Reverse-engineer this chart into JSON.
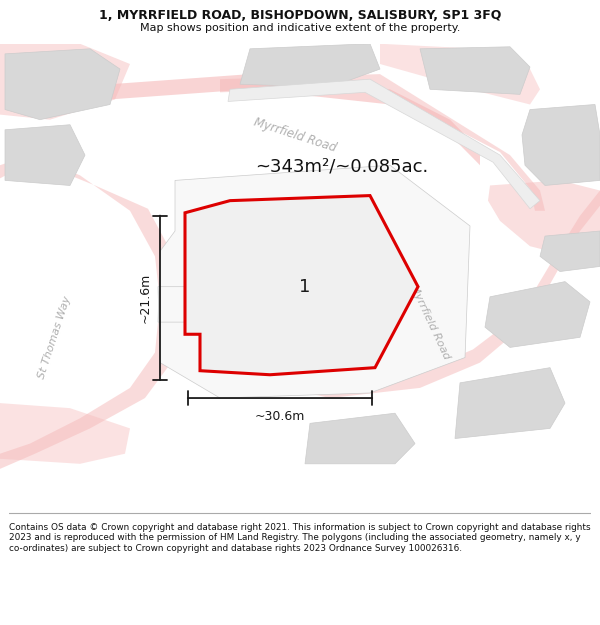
{
  "title_line1": "1, MYRRFIELD ROAD, BISHOPDOWN, SALISBURY, SP1 3FQ",
  "title_line2": "Map shows position and indicative extent of the property.",
  "area_label": "~343m²/~0.085ac.",
  "width_label": "~30.6m",
  "height_label": "~21.6m",
  "property_number": "1",
  "footer_text": "Contains OS data © Crown copyright and database right 2021. This information is subject to Crown copyright and database rights 2023 and is reproduced with the permission of HM Land Registry. The polygons (including the associated geometry, namely x, y co-ordinates) are subject to Crown copyright and database rights 2023 Ordnance Survey 100026316.",
  "bg_color": "#ffffff",
  "street_pink": "#f5b8b8",
  "street_pink_light": "#fad4d4",
  "road_gray": "#e0e0e0",
  "block_gray": "#d8d8d8",
  "block_edge": "#cccccc",
  "property_color": "#dd0000",
  "property_fill": "#f0f0f0",
  "dim_line_color": "#1a1a1a",
  "road_label_color": "#b0b0b0",
  "label_dark": "#555555",
  "title_color": "#111111",
  "footer_color": "#111111"
}
